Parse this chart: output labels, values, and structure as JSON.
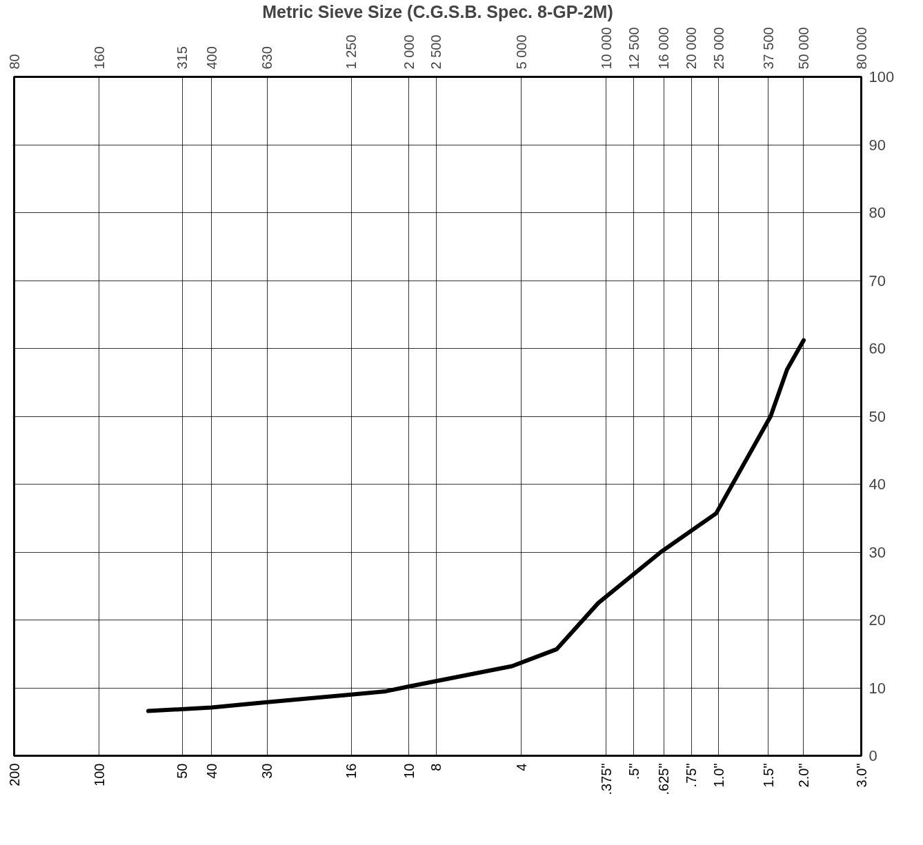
{
  "chart_data": {
    "type": "line",
    "xlabel": "Metric Sieve Size (C.G.S.B. Spec. 8-GP-2M)",
    "log": "x",
    "xlim": [
      80,
      80000
    ],
    "ylim": [
      0,
      100
    ],
    "xticks": [
      80,
      160,
      315,
      400,
      630,
      {
        "value": 1250,
        "label": "1 250"
      },
      {
        "value": 2000,
        "label": "2 000"
      },
      {
        "value": 2500,
        "label": "2 500"
      },
      {
        "value": 5000,
        "label": "5 000"
      },
      {
        "value": 10000,
        "label": "10 000"
      },
      {
        "value": 12500,
        "label": "12 500"
      },
      {
        "value": 16000,
        "label": "16 000"
      },
      {
        "value": 20000,
        "label": "20 000"
      },
      {
        "value": 25000,
        "label": "25 000"
      },
      {
        "value": 37500,
        "label": "37 500"
      },
      {
        "value": 50000,
        "label": "50 000"
      },
      {
        "value": 80000,
        "label": "80 000"
      }
    ],
    "yticks": [
      0,
      10,
      20,
      30,
      40,
      50,
      60,
      70,
      80,
      90,
      100
    ],
    "grid": true,
    "line_style": "solid",
    "annotations": [
      "200",
      "100",
      "50",
      "40",
      "30",
      "16",
      "10",
      "8",
      "4",
      ".375\"",
      ".5\"",
      ".625\"",
      ".75\"",
      "1.0\"",
      "1.5\"",
      "2.0\"",
      "3.0\""
    ],
    "series": [
      {
        "color": "#000000",
        "x": [
          239,
          400,
          630,
          1250,
          1660,
          2000,
          4640,
          6680,
          9370,
          15600,
          24500,
          38200,
          43700,
          50000
        ],
        "values": [
          6.6,
          7.1,
          7.9,
          9.0,
          9.5,
          10.2,
          13.2,
          15.7,
          22.5,
          30.0,
          35.7,
          50.0,
          56.9,
          61.2
        ]
      }
    ]
  }
}
